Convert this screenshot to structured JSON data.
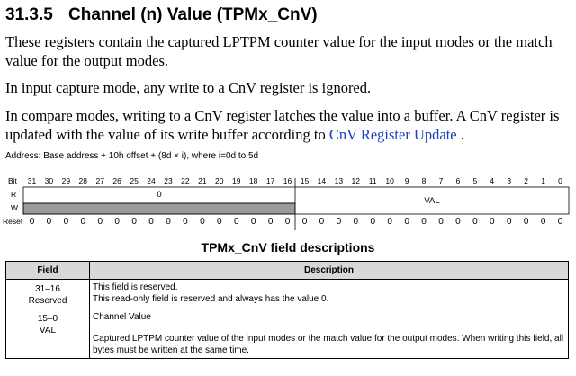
{
  "section": {
    "number": "31.3.5",
    "title": "Channel (n) Value (TPMx_CnV)"
  },
  "paragraphs": [
    {
      "text": "These registers contain the captured LPTPM counter value for the input modes or the match value for the output modes."
    },
    {
      "text": "In input capture mode, any write to a CnV register is ignored."
    },
    {
      "text": "In compare modes, writing to a CnV register latches the value into a buffer. A CnV register is updated with the value of its write buffer according to ",
      "link": "CnV Register Update",
      " tail": " ."
    }
  ],
  "address": "Address: Base address + 10h offset + (8d × i), where i=0d to 5d",
  "register": {
    "bit_label": "Bit",
    "read_label": "R",
    "write_label": "W",
    "reset_label": "Reset",
    "bits": [
      "31",
      "30",
      "29",
      "28",
      "27",
      "26",
      "25",
      "24",
      "23",
      "22",
      "21",
      "20",
      "19",
      "18",
      "17",
      "16",
      "15",
      "14",
      "13",
      "12",
      "11",
      "10",
      "9",
      "8",
      "7",
      "6",
      "5",
      "4",
      "3",
      "2",
      "1",
      "0"
    ],
    "upper_read": "0",
    "lower_field": "VAL",
    "reset": [
      "0",
      "0",
      "0",
      "0",
      "0",
      "0",
      "0",
      "0",
      "0",
      "0",
      "0",
      "0",
      "0",
      "0",
      "0",
      "0",
      "0",
      "0",
      "0",
      "0",
      "0",
      "0",
      "0",
      "0",
      "0",
      "0",
      "0",
      "0",
      "0",
      "0",
      "0",
      "0"
    ]
  },
  "table_caption": "TPMx_CnV field descriptions",
  "field_table": {
    "headers": [
      "Field",
      "Description"
    ],
    "rows": [
      {
        "field": [
          "31–16",
          "Reserved"
        ],
        "desc": [
          "This field is reserved.",
          "This read-only field is reserved and always has the value 0."
        ]
      },
      {
        "field": [
          "15–0",
          "VAL"
        ],
        "desc": [
          "Channel Value",
          "Captured LPTPM counter value of the input modes or the match value for the output modes. When writing this field, all bytes must be written at the same time."
        ]
      }
    ]
  },
  "colors": {
    "link": "#1a40c0",
    "reserved_fill": "#9a9a9a",
    "header_fill": "#d8d8d8"
  }
}
